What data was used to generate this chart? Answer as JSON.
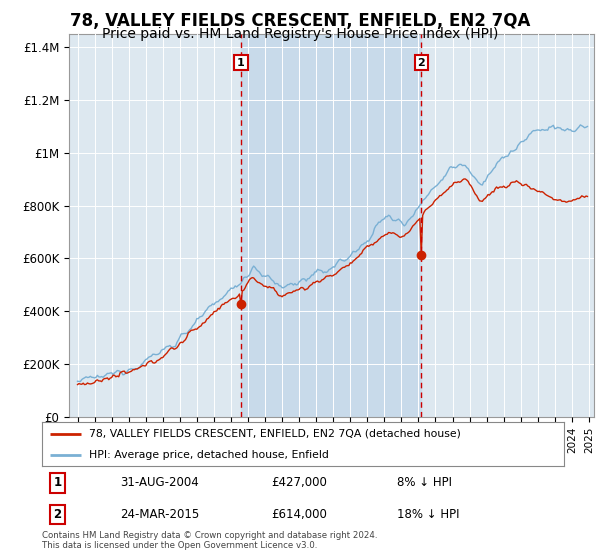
{
  "title": "78, VALLEY FIELDS CRESCENT, ENFIELD, EN2 7QA",
  "subtitle": "Price paid vs. HM Land Registry's House Price Index (HPI)",
  "title_fontsize": 12,
  "subtitle_fontsize": 10,
  "background_color": "#ffffff",
  "plot_bg_color": "#dde8f0",
  "fill_between_color": "#c8daea",
  "grid_color": "#ffffff",
  "hpi_color": "#7ab0d4",
  "price_color": "#cc2200",
  "vline_color": "#cc0000",
  "sale1_date": "31-AUG-2004",
  "sale1_price": "£427,000",
  "sale1_pct": "8% ↓ HPI",
  "sale2_date": "24-MAR-2015",
  "sale2_price": "£614,000",
  "sale2_pct": "18% ↓ HPI",
  "legend_line1": "78, VALLEY FIELDS CRESCENT, ENFIELD, EN2 7QA (detached house)",
  "legend_line2": "HPI: Average price, detached house, Enfield",
  "footnote": "Contains HM Land Registry data © Crown copyright and database right 2024.\nThis data is licensed under the Open Government Licence v3.0."
}
